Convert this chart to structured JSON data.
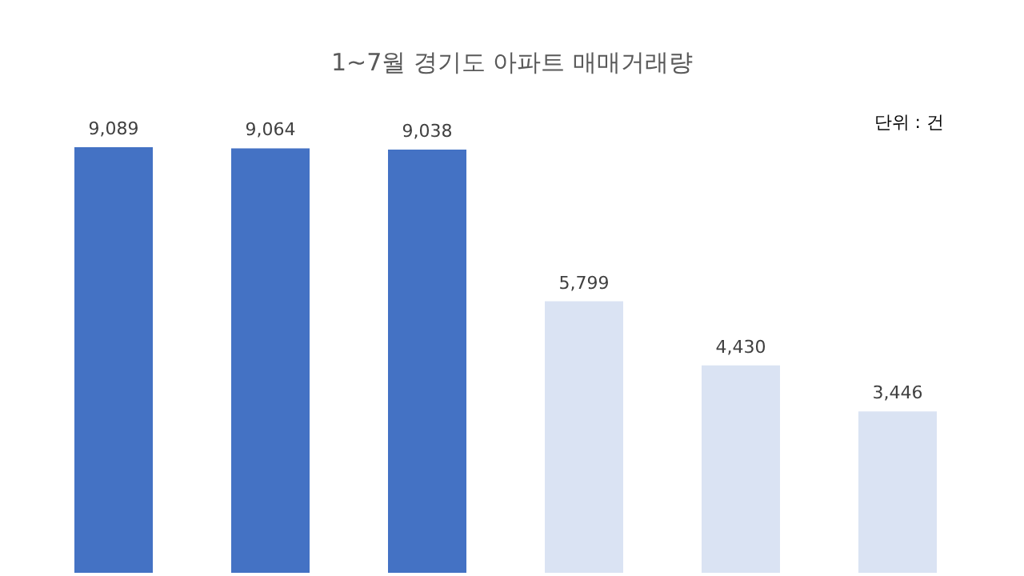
{
  "chart_data": {
    "type": "bar",
    "title": "1~7월 경기도 아파트 매매거래량",
    "annotations": [
      "단위 : 건"
    ],
    "categories": [
      null,
      null,
      null,
      null,
      null,
      null
    ],
    "values": [
      9089,
      9064,
      9038,
      5799,
      4430,
      3446
    ],
    "colors": [
      "#4472c4",
      "#4472c4",
      "#4472c4",
      "#dae3f3",
      "#dae3f3",
      "#dae3f3"
    ],
    "value_labels": [
      "9,089",
      "9,064",
      "9,038",
      "5,799",
      "4,430",
      "3,446"
    ]
  }
}
